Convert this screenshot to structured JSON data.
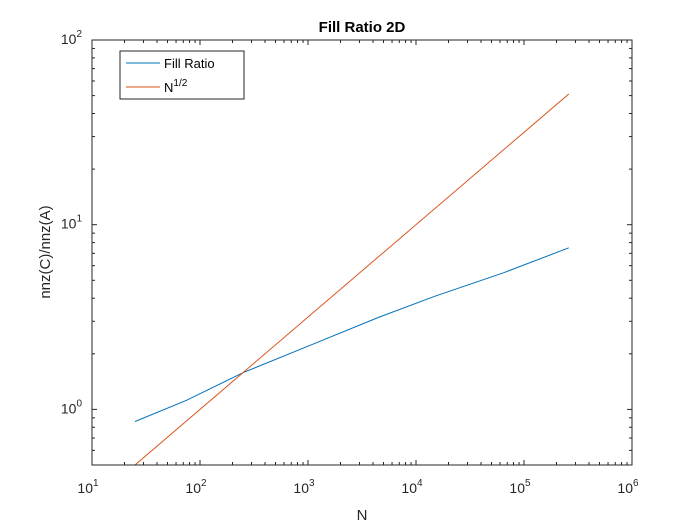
{
  "chart_data": {
    "type": "line",
    "title": "Fill Ratio 2D",
    "xlabel": "N",
    "ylabel": "nnz(C)/nnz(A)",
    "xscale": "log",
    "yscale": "log",
    "xlim": [
      10,
      1000000
    ],
    "ylim": [
      0.5,
      100
    ],
    "x_ticks": [
      {
        "base": "10",
        "exp": "1"
      },
      {
        "base": "10",
        "exp": "2"
      },
      {
        "base": "10",
        "exp": "3"
      },
      {
        "base": "10",
        "exp": "4"
      },
      {
        "base": "10",
        "exp": "5"
      },
      {
        "base": "10",
        "exp": "6"
      }
    ],
    "y_ticks": [
      {
        "base": "10",
        "exp": "0"
      },
      {
        "base": "10",
        "exp": "1"
      },
      {
        "base": "10",
        "exp": "2"
      }
    ],
    "grid": false,
    "legend_position": "top-left",
    "series": [
      {
        "name": "Fill Ratio",
        "color": "#0072BD",
        "x": [
          25,
          75,
          250,
          1000,
          4500,
          15000,
          65000,
          260000
        ],
        "y": [
          0.86,
          1.12,
          1.58,
          2.2,
          3.15,
          4.1,
          5.5,
          7.5
        ]
      },
      {
        "name_base": "N",
        "name_exp": "1/2",
        "color": "#D95319",
        "x": [
          25,
          260000
        ],
        "y": [
          0.5,
          51
        ]
      }
    ]
  }
}
